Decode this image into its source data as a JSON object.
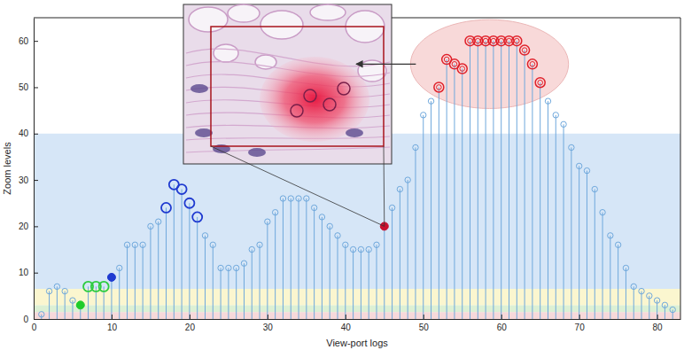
{
  "chart_data": {
    "type": "stem",
    "x_label": "View-port logs",
    "y_label": "Zoom levels",
    "color": "#6fa8dc",
    "grid": false,
    "xlim": [
      0,
      83
    ],
    "ylim": [
      0,
      65
    ],
    "xticks": [
      0,
      10,
      20,
      30,
      40,
      50,
      60,
      70,
      80
    ],
    "yticks": [
      0,
      10,
      20,
      30,
      40,
      50,
      60
    ],
    "bands": [
      {
        "from": 0,
        "to": 1.5,
        "color": "#f7d9da"
      },
      {
        "from": 1.5,
        "to": 3,
        "color": "#dcf0d4"
      },
      {
        "from": 3,
        "to": 6.5,
        "color": "#fbf6cf"
      },
      {
        "from": 6.5,
        "to": 40,
        "color": "#d6e6f7"
      }
    ],
    "series": [
      {
        "color": "#6fa8dc",
        "marker": "circle-open",
        "x": [
          1,
          2,
          3,
          4,
          5,
          11,
          12,
          13,
          14,
          15,
          16,
          22,
          23,
          24,
          25,
          26,
          27,
          28,
          29,
          30,
          31,
          32,
          33,
          34,
          35,
          36,
          37,
          38,
          39,
          40,
          41,
          42,
          43,
          44,
          46,
          47,
          48,
          49,
          50,
          51,
          66,
          67,
          68,
          69,
          70,
          71,
          72,
          73,
          74,
          75,
          76,
          77,
          78,
          79,
          80,
          81,
          82
        ],
        "values": [
          1,
          6,
          7,
          6,
          4,
          11,
          16,
          16,
          16,
          20,
          21,
          18,
          16,
          11,
          11,
          11,
          12,
          15,
          16,
          21,
          23,
          26,
          26,
          26,
          26,
          24,
          22,
          20,
          18,
          16,
          15,
          15,
          15,
          16,
          24,
          28,
          30,
          37,
          44,
          47,
          47,
          44,
          42,
          37,
          33,
          32,
          28,
          23,
          18,
          16,
          11,
          7,
          6,
          5,
          4,
          3,
          2
        ]
      },
      {
        "color": "#1fcc2a",
        "marker": "circle-filled",
        "x": [
          6
        ],
        "values": [
          3
        ]
      },
      {
        "color": "#2ecc40",
        "marker": "ring",
        "x": [
          7,
          8,
          9
        ],
        "values": [
          7,
          7,
          7
        ]
      },
      {
        "color": "#1f3ad0",
        "marker": "circle-filled",
        "x": [
          10
        ],
        "values": [
          9
        ]
      },
      {
        "color": "#1f3ad0",
        "marker": "ring",
        "x": [
          17,
          18,
          19,
          20,
          21
        ],
        "values": [
          24,
          29,
          28,
          25,
          22
        ]
      },
      {
        "color": "#c8102e",
        "marker": "circle-filled",
        "x": [
          45
        ],
        "values": [
          20
        ]
      },
      {
        "color": "#e0202a",
        "marker": "double-circle",
        "x": [
          52,
          53,
          54,
          55,
          56,
          57,
          58,
          59,
          60,
          61,
          62,
          63,
          64,
          65
        ],
        "values": [
          50,
          56,
          55,
          54,
          60,
          60,
          60,
          60,
          60,
          60,
          60,
          58,
          55,
          51
        ]
      }
    ]
  }
}
